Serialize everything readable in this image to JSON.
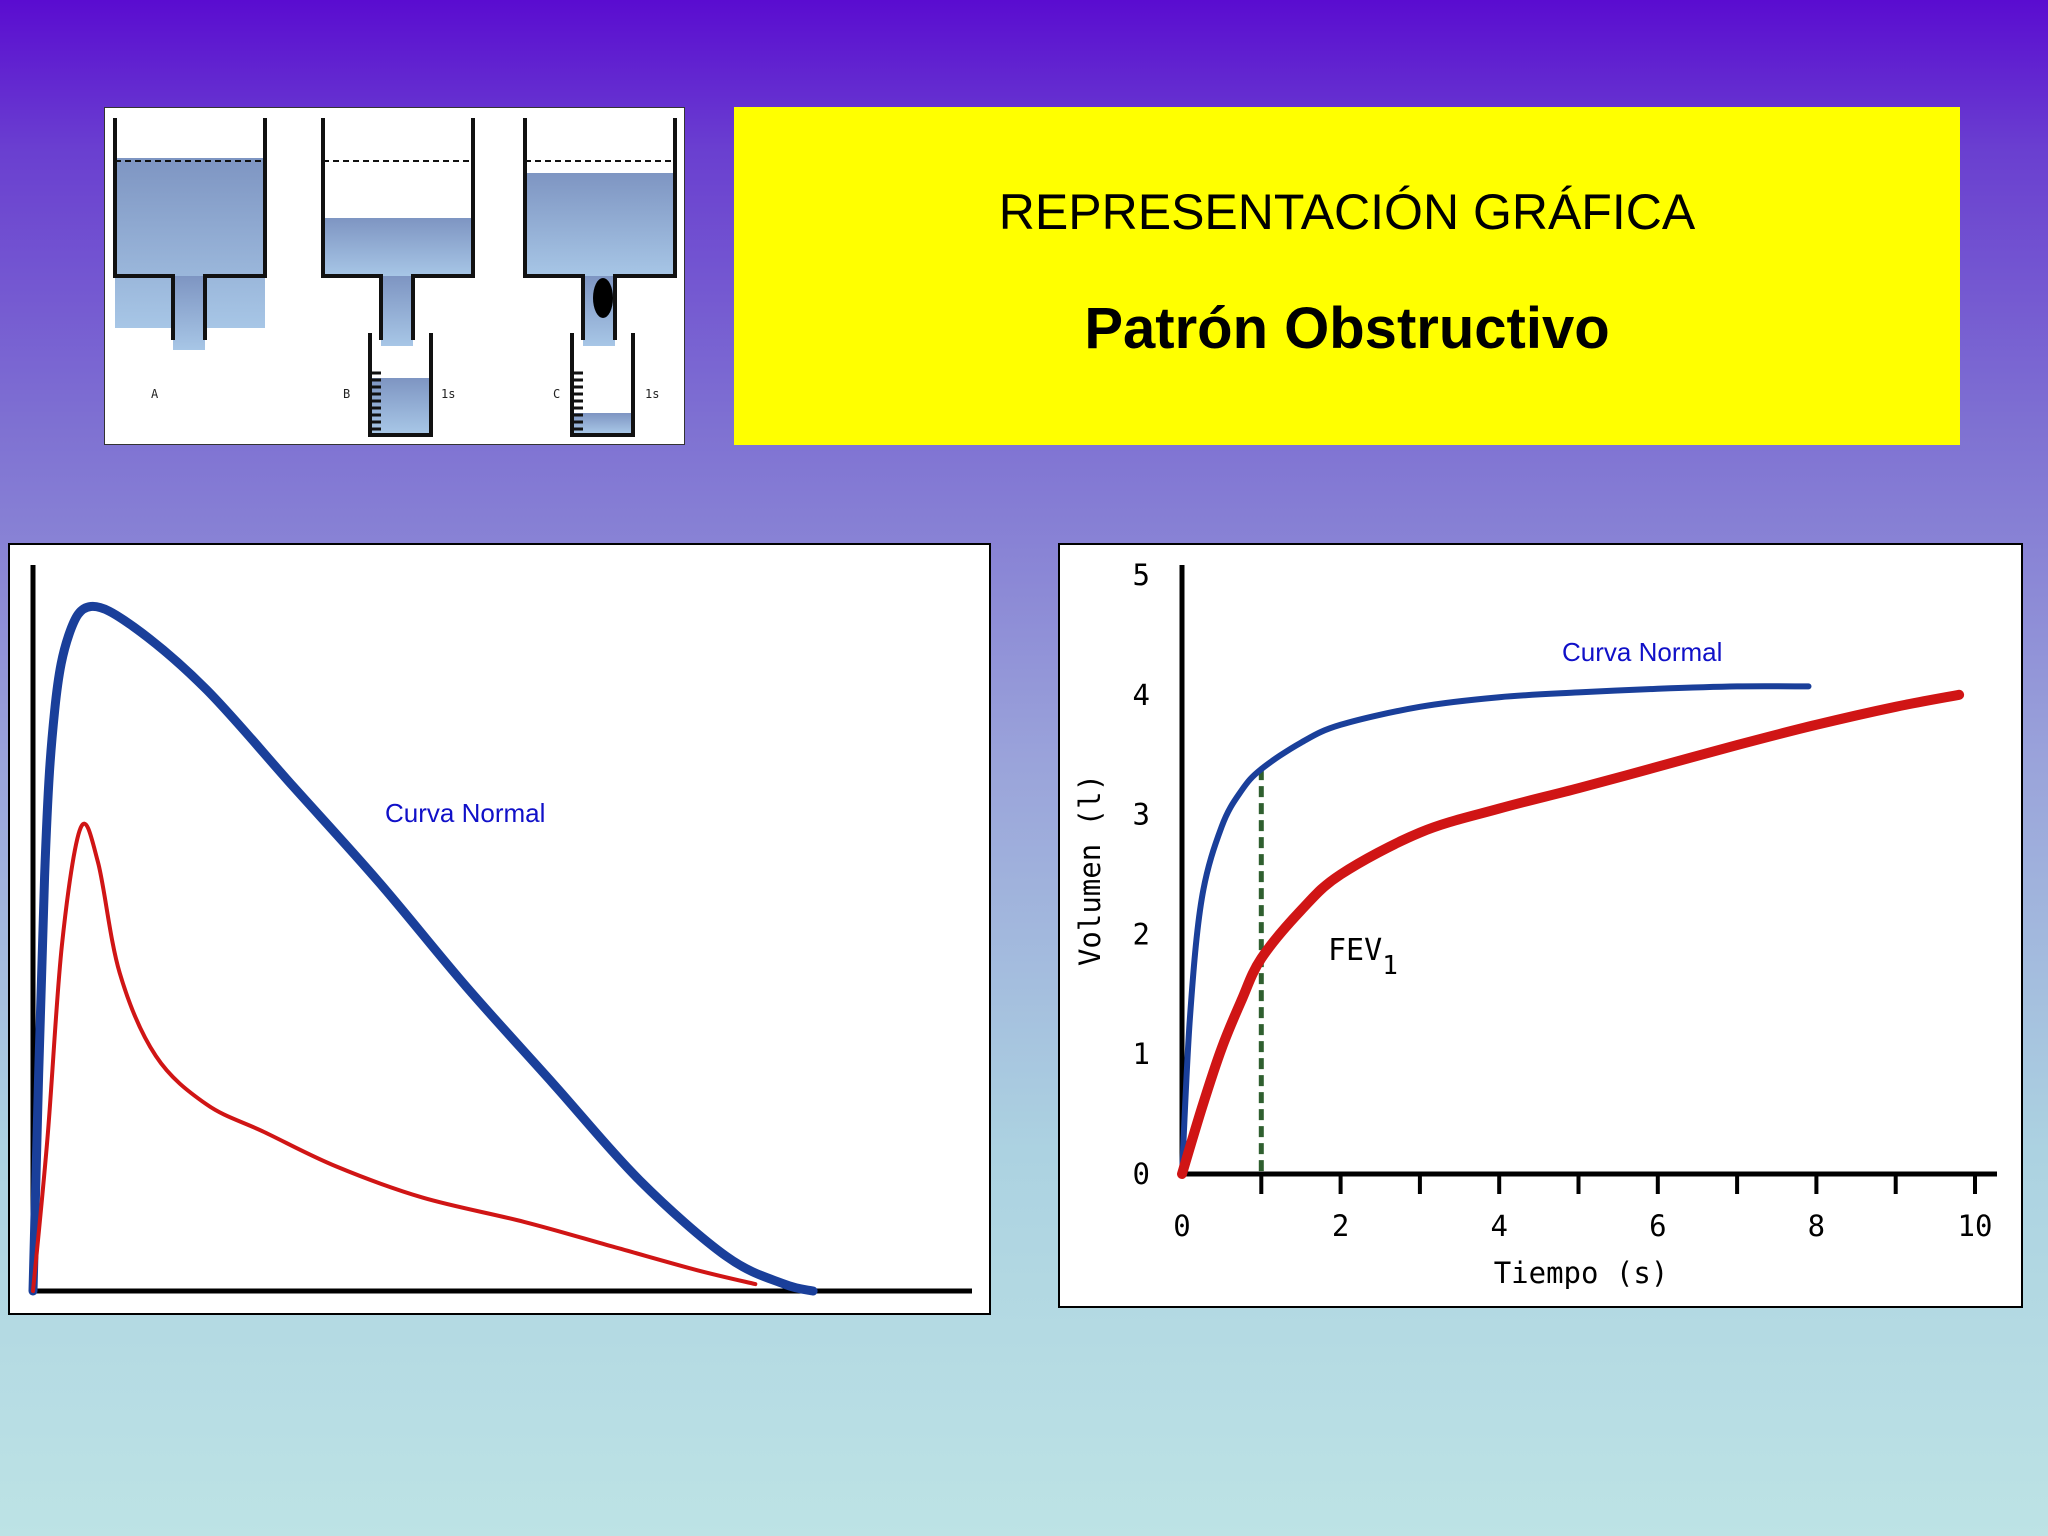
{
  "header": {
    "title": "REPRESENTACIÓN GRÁFICA",
    "subtitle": "Patrón Obstructivo"
  },
  "tanks": {
    "labels": [
      "A",
      "B",
      "C"
    ],
    "time_label": "1s"
  },
  "colors": {
    "normal": "#1a3f9a",
    "obstructive": "#d01515",
    "title_bg": "#ffff00",
    "fev_line": "#2f5f2f"
  },
  "chart_data": [
    {
      "type": "line",
      "title": "",
      "xlabel": "",
      "ylabel": "",
      "annotation": "Curva Normal",
      "series": [
        {
          "name": "Curva Normal",
          "x": [
            0,
            0.08,
            0.15,
            0.25,
            0.4,
            0.7,
            1.2,
            1.8,
            2.4,
            3.0,
            3.6,
            4.2,
            4.8,
            5.2,
            5.4
          ],
          "y": [
            0,
            6.0,
            8.4,
            9.5,
            9.9,
            9.6,
            8.7,
            7.3,
            5.9,
            4.4,
            3.0,
            1.6,
            0.5,
            0.1,
            0
          ]
        },
        {
          "name": "",
          "x": [
            0,
            0.1,
            0.2,
            0.33,
            0.45,
            0.6,
            0.85,
            1.2,
            1.6,
            2.1,
            2.7,
            3.4,
            4.0,
            4.6,
            5.0
          ],
          "y": [
            0,
            2.2,
            5.0,
            6.7,
            6.2,
            4.6,
            3.4,
            2.7,
            2.3,
            1.8,
            1.35,
            1.0,
            0.65,
            0.3,
            0.1
          ]
        }
      ],
      "xlim": [
        0,
        6.5
      ],
      "ylim": [
        0,
        10.5
      ],
      "grid": false
    },
    {
      "type": "line",
      "title": "",
      "xlabel": "Tiempo (s)",
      "ylabel": "Volumen (l)",
      "annotation": "Curva Normal",
      "fev_label": "FEV",
      "fev_subscript": "1",
      "fev_marker_x": 1,
      "x_ticks": [
        0,
        2,
        4,
        6,
        8,
        10
      ],
      "y_ticks": [
        0,
        1,
        2,
        3,
        4,
        5
      ],
      "xlim": [
        0,
        10
      ],
      "ylim": [
        0,
        5
      ],
      "grid": false,
      "series": [
        {
          "name": "Curva Normal",
          "x": [
            0,
            0.1,
            0.25,
            0.5,
            0.75,
            1,
            1.5,
            2,
            3,
            4,
            5,
            6,
            7,
            7.9
          ],
          "y": [
            0,
            1.3,
            2.3,
            2.9,
            3.2,
            3.38,
            3.6,
            3.75,
            3.9,
            3.98,
            4.02,
            4.05,
            4.07,
            4.07
          ]
        },
        {
          "name": "",
          "x": [
            0,
            0.25,
            0.5,
            0.75,
            1,
            1.5,
            2,
            3,
            4,
            5,
            6,
            7,
            8,
            9,
            9.8
          ],
          "y": [
            0,
            0.55,
            1.05,
            1.45,
            1.8,
            2.2,
            2.5,
            2.85,
            3.05,
            3.22,
            3.4,
            3.58,
            3.75,
            3.9,
            4.0
          ]
        }
      ]
    }
  ]
}
